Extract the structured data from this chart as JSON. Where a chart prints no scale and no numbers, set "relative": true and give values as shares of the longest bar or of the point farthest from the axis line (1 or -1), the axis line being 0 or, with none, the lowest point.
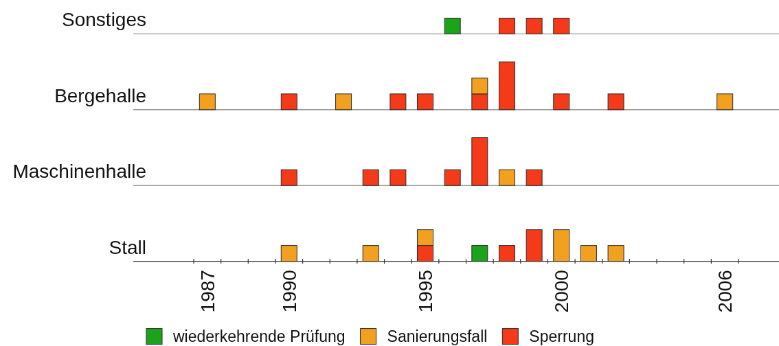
{
  "chart_data": [
    {
      "type": "bar",
      "stacked": true,
      "relative": true,
      "ylabel": "Sonstiges",
      "tick_labels": false,
      "categories": [
        "1987",
        null,
        null,
        "1990",
        null,
        null,
        null,
        null,
        "1995",
        null,
        null,
        null,
        null,
        "2000",
        null,
        null,
        null,
        null,
        null,
        "2006"
      ],
      "series": [
        {
          "color": "#f43a18",
          "values": [
            null,
            null,
            null,
            null,
            null,
            null,
            null,
            null,
            null,
            null,
            null,
            1,
            1,
            1,
            null,
            null,
            null,
            null,
            null,
            null
          ]
        },
        {
          "color": "#1ba31b",
          "values": [
            null,
            null,
            null,
            null,
            null,
            null,
            null,
            null,
            null,
            1,
            null,
            null,
            null,
            null,
            null,
            null,
            null,
            null,
            null,
            null
          ]
        }
      ]
    },
    {
      "type": "bar",
      "stacked": true,
      "relative": true,
      "ylabel": "Bergehalle",
      "tick_labels": false,
      "categories": [
        "1987",
        null,
        null,
        "1990",
        null,
        null,
        null,
        null,
        "1995",
        null,
        null,
        null,
        null,
        "2000",
        null,
        null,
        null,
        null,
        null,
        "2006"
      ],
      "series": [
        {
          "color": "#f43a18",
          "values": [
            null,
            null,
            null,
            0.33,
            null,
            null,
            null,
            0.33,
            0.33,
            null,
            0.33,
            1,
            null,
            0.33,
            null,
            0.33,
            null,
            null,
            null,
            null
          ]
        },
        {
          "color": "#f1a11f",
          "values": [
            0.33,
            null,
            null,
            null,
            null,
            0.33,
            null,
            null,
            null,
            null,
            0.33,
            null,
            null,
            null,
            null,
            null,
            null,
            null,
            null,
            0.33
          ]
        }
      ]
    },
    {
      "type": "bar",
      "stacked": true,
      "relative": true,
      "ylabel": "Maschinenhalle",
      "tick_labels": false,
      "categories": [
        "1987",
        null,
        null,
        "1990",
        null,
        null,
        null,
        null,
        "1995",
        null,
        null,
        null,
        null,
        "2000",
        null,
        null,
        null,
        null,
        null,
        "2006"
      ],
      "series": [
        {
          "color": "#f43a18",
          "values": [
            null,
            null,
            null,
            0.33,
            null,
            null,
            0.33,
            0.33,
            null,
            0.33,
            1,
            null,
            0.33,
            null,
            null,
            null,
            null,
            null,
            null,
            null
          ]
        },
        {
          "color": "#f1a11f",
          "values": [
            null,
            null,
            null,
            null,
            null,
            null,
            null,
            null,
            null,
            null,
            null,
            0.33,
            null,
            null,
            null,
            null,
            null,
            null,
            null,
            null
          ]
        }
      ]
    },
    {
      "type": "bar",
      "stacked": true,
      "relative": true,
      "ylabel": "Stall",
      "legend": "bottom",
      "categories": [
        "1987",
        null,
        null,
        "1990",
        null,
        null,
        null,
        null,
        "1995",
        null,
        null,
        null,
        null,
        "2000",
        null,
        null,
        null,
        null,
        null,
        "2006"
      ],
      "series": [
        {
          "name": "Sperrung",
          "color": "#f43a18",
          "values": [
            null,
            null,
            null,
            null,
            null,
            null,
            null,
            null,
            0.5,
            null,
            null,
            0.5,
            1,
            null,
            null,
            null,
            null,
            null,
            null,
            null
          ]
        },
        {
          "name": "Sanierungsfall",
          "color": "#f1a11f",
          "values": [
            null,
            null,
            null,
            0.5,
            null,
            null,
            0.5,
            null,
            0.5,
            null,
            null,
            null,
            null,
            1,
            0.5,
            0.5,
            null,
            null,
            null,
            null
          ]
        },
        {
          "name": "wiederkehrende Prüfung",
          "color": "#1ba31b",
          "values": [
            null,
            null,
            null,
            null,
            null,
            null,
            null,
            null,
            null,
            null,
            0.5,
            null,
            null,
            null,
            null,
            null,
            null,
            null,
            null,
            null
          ]
        }
      ]
    }
  ]
}
